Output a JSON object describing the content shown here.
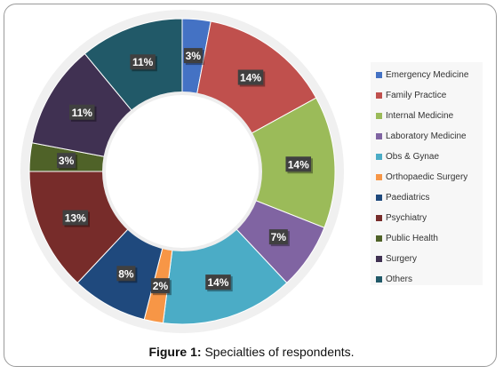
{
  "caption": {
    "label": "Figure 1:",
    "text": " Specialties of respondents."
  },
  "chart_data": {
    "type": "pie",
    "subtype": "donut",
    "legend_position": "right",
    "categories": [
      "Emergency Medicine",
      "Family Practice",
      "Internal Medicine",
      "Laboratory Medicine",
      "Obs & Gynae",
      "Orthopaedic Surgery",
      "Paediatrics",
      "Psychiatry",
      "Public Health",
      "Surgery",
      "Others"
    ],
    "values": [
      3,
      14,
      14,
      7,
      14,
      2,
      8,
      13,
      3,
      11,
      11
    ],
    "data_labels": [
      "3%",
      "14%",
      "14%",
      "7%",
      "14%",
      "2%",
      "8%",
      "13%",
      "3%",
      "11%",
      "11%"
    ],
    "colors": [
      "#4472c4",
      "#c0504d",
      "#9bbb59",
      "#8064a2",
      "#4bacc6",
      "#f79646",
      "#1f497d",
      "#772c2a",
      "#4f6228",
      "#403152",
      "#215968"
    ]
  }
}
